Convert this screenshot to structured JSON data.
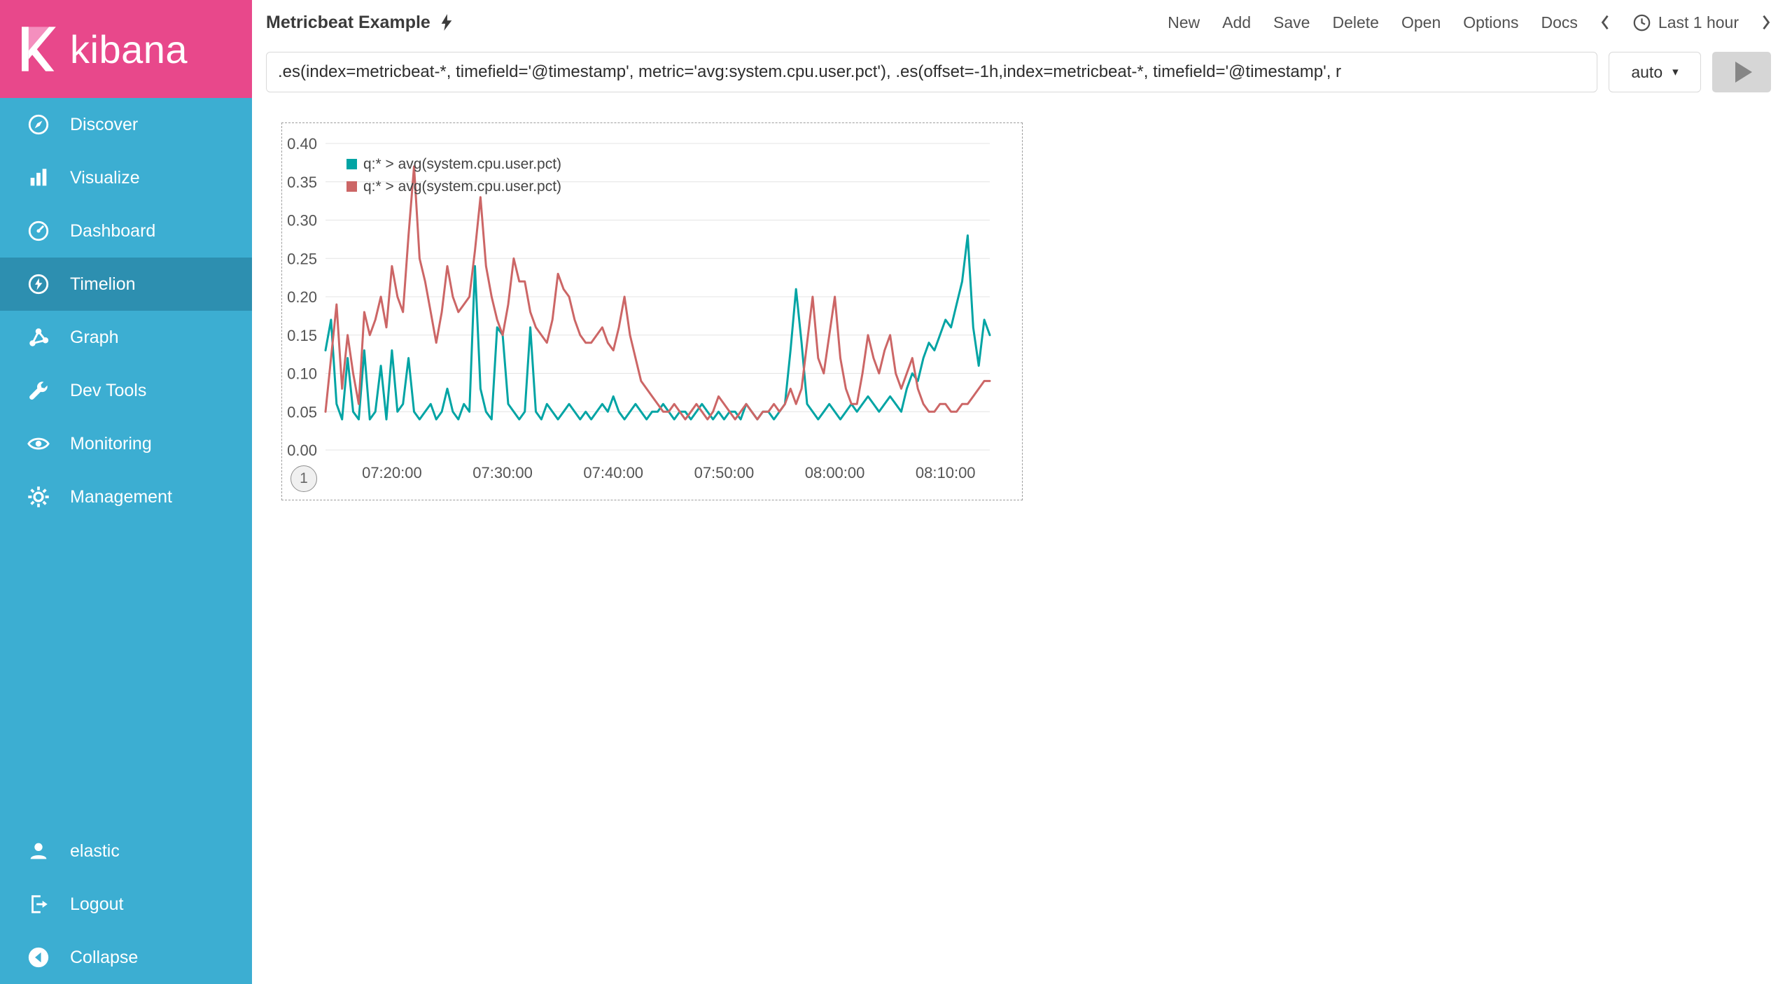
{
  "sidebar": {
    "logo_text": "kibana",
    "items": [
      {
        "label": "Discover",
        "icon": "compass-icon"
      },
      {
        "label": "Visualize",
        "icon": "bar-chart-icon"
      },
      {
        "label": "Dashboard",
        "icon": "gauge-icon"
      },
      {
        "label": "Timelion",
        "icon": "timelion-clock-bolt-icon",
        "active": true
      },
      {
        "label": "Graph",
        "icon": "network-icon"
      },
      {
        "label": "Dev Tools",
        "icon": "wrench-icon"
      },
      {
        "label": "Monitoring",
        "icon": "eye-icon"
      },
      {
        "label": "Management",
        "icon": "gear-icon"
      }
    ],
    "bottom_items": [
      {
        "label": "elastic",
        "icon": "user-icon"
      },
      {
        "label": "Logout",
        "icon": "logout-icon"
      },
      {
        "label": "Collapse",
        "icon": "collapse-circle-left-icon"
      }
    ]
  },
  "topbar": {
    "title": "Metricbeat Example",
    "menu": [
      "New",
      "Add",
      "Save",
      "Delete",
      "Open",
      "Options",
      "Docs"
    ],
    "time_filter": "Last 1 hour"
  },
  "query": {
    "value": ".es(index=metricbeat-*, timefield='@timestamp', metric='avg:system.cpu.user.pct'), .es(offset=-1h,index=metricbeat-*, timefield='@timestamp', r",
    "interval": "auto"
  },
  "panel": {
    "badge": "1"
  },
  "colors": {
    "sidebar_bg": "#3CAED2",
    "sidebar_active": "#2D8FB0",
    "logo_bg": "#E8488B",
    "series_teal": "#01A4A4",
    "series_red": "#CC6666"
  },
  "chart_data": {
    "type": "line",
    "title": "",
    "xlabel": "",
    "ylabel": "",
    "grid": "horizontal-only",
    "legend_position": "top-left-inside",
    "ylim": [
      0,
      0.4
    ],
    "y_ticks": [
      {
        "value": 0.0,
        "label": "0.00"
      },
      {
        "value": 0.05,
        "label": "0.05"
      },
      {
        "value": 0.1,
        "label": "0.10"
      },
      {
        "value": 0.15,
        "label": "0.15"
      },
      {
        "value": 0.2,
        "label": "0.20"
      },
      {
        "value": 0.25,
        "label": "0.25"
      },
      {
        "value": 0.3,
        "label": "0.30"
      },
      {
        "value": 0.35,
        "label": "0.35"
      },
      {
        "value": 0.4,
        "label": "0.40"
      }
    ],
    "x_domain_seconds": [
      26040,
      29640
    ],
    "x_start_time": "07:14:00",
    "x_end_time": "08:14:00",
    "x_start_seconds": 26040,
    "x_step_seconds": 30,
    "x_ticks": [
      {
        "seconds": 26400,
        "label": "07:20:00"
      },
      {
        "seconds": 27000,
        "label": "07:30:00"
      },
      {
        "seconds": 27600,
        "label": "07:40:00"
      },
      {
        "seconds": 28200,
        "label": "07:50:00"
      },
      {
        "seconds": 28800,
        "label": "08:00:00"
      },
      {
        "seconds": 29400,
        "label": "08:10:00"
      }
    ],
    "series": [
      {
        "name": "q:* > avg(system.cpu.user.pct)",
        "color": "#01A4A4",
        "values": [
          0.13,
          0.17,
          0.06,
          0.04,
          0.12,
          0.05,
          0.04,
          0.13,
          0.04,
          0.05,
          0.11,
          0.04,
          0.13,
          0.05,
          0.06,
          0.12,
          0.05,
          0.04,
          0.05,
          0.06,
          0.04,
          0.05,
          0.08,
          0.05,
          0.04,
          0.06,
          0.05,
          0.24,
          0.08,
          0.05,
          0.04,
          0.16,
          0.15,
          0.06,
          0.05,
          0.04,
          0.05,
          0.16,
          0.05,
          0.04,
          0.06,
          0.05,
          0.04,
          0.05,
          0.06,
          0.05,
          0.04,
          0.05,
          0.04,
          0.05,
          0.06,
          0.05,
          0.07,
          0.05,
          0.04,
          0.05,
          0.06,
          0.05,
          0.04,
          0.05,
          0.05,
          0.06,
          0.05,
          0.04,
          0.05,
          0.05,
          0.04,
          0.05,
          0.06,
          0.05,
          0.04,
          0.05,
          0.04,
          0.05,
          0.05,
          0.04,
          0.06,
          0.05,
          0.04,
          0.05,
          0.05,
          0.04,
          0.05,
          0.06,
          0.13,
          0.21,
          0.14,
          0.06,
          0.05,
          0.04,
          0.05,
          0.06,
          0.05,
          0.04,
          0.05,
          0.06,
          0.05,
          0.06,
          0.07,
          0.06,
          0.05,
          0.06,
          0.07,
          0.06,
          0.05,
          0.08,
          0.1,
          0.09,
          0.12,
          0.14,
          0.13,
          0.15,
          0.17,
          0.16,
          0.19,
          0.22,
          0.28,
          0.16,
          0.11,
          0.17,
          0.15
        ]
      },
      {
        "name": "q:* > avg(system.cpu.user.pct)",
        "color": "#CC6666",
        "offset": "-1h",
        "values": [
          0.05,
          0.12,
          0.19,
          0.08,
          0.15,
          0.1,
          0.06,
          0.18,
          0.15,
          0.17,
          0.2,
          0.16,
          0.24,
          0.2,
          0.18,
          0.28,
          0.37,
          0.25,
          0.22,
          0.18,
          0.14,
          0.18,
          0.24,
          0.2,
          0.18,
          0.19,
          0.2,
          0.26,
          0.33,
          0.24,
          0.2,
          0.17,
          0.15,
          0.19,
          0.25,
          0.22,
          0.22,
          0.18,
          0.16,
          0.15,
          0.14,
          0.17,
          0.23,
          0.21,
          0.2,
          0.17,
          0.15,
          0.14,
          0.14,
          0.15,
          0.16,
          0.14,
          0.13,
          0.16,
          0.2,
          0.15,
          0.12,
          0.09,
          0.08,
          0.07,
          0.06,
          0.05,
          0.05,
          0.06,
          0.05,
          0.04,
          0.05,
          0.06,
          0.05,
          0.04,
          0.05,
          0.07,
          0.06,
          0.05,
          0.04,
          0.05,
          0.06,
          0.05,
          0.04,
          0.05,
          0.05,
          0.06,
          0.05,
          0.06,
          0.08,
          0.06,
          0.08,
          0.14,
          0.2,
          0.12,
          0.1,
          0.15,
          0.2,
          0.12,
          0.08,
          0.06,
          0.06,
          0.1,
          0.15,
          0.12,
          0.1,
          0.13,
          0.15,
          0.1,
          0.08,
          0.1,
          0.12,
          0.08,
          0.06,
          0.05,
          0.05,
          0.06,
          0.06,
          0.05,
          0.05,
          0.06,
          0.06,
          0.07,
          0.08,
          0.09,
          0.09
        ]
      }
    ]
  }
}
